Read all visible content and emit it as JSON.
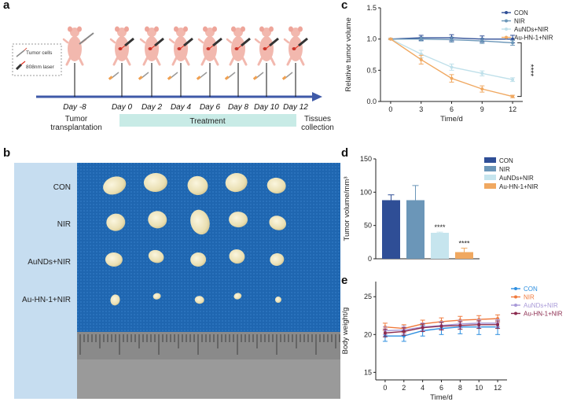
{
  "figure": {
    "panel_labels": [
      "a",
      "b",
      "c",
      "d",
      "e"
    ]
  },
  "panel_a": {
    "legend": {
      "cells": "Tumor cells",
      "laser": "808nm laser"
    },
    "days": [
      "Day -8",
      "Day 0",
      "Day 2",
      "Day 4",
      "Day 6",
      "Day 8",
      "Day 10",
      "Day 12"
    ],
    "events": {
      "transplant": "Tumor\ntransplantation",
      "treatment": "Treatment",
      "collection": "Tissues\ncollection"
    },
    "colors": {
      "axis": "#3f5aa8",
      "treatment_bar": "#c8ebe6",
      "mouse": "#f2b8ae"
    }
  },
  "panel_b": {
    "row_labels": [
      "CON",
      "NIR",
      "AuNDs+NIR",
      "Au-HN-1+NIR"
    ],
    "colors": {
      "label_bg": "#c6ddf0",
      "cloth": "#1f66b0",
      "ruler": "#7d7d7d"
    }
  },
  "chart_data": [
    {
      "id": "c",
      "type": "line",
      "ylabel": "Relative tumor volume",
      "xlabel": "Time/d",
      "x": [
        0,
        3,
        6,
        9,
        12
      ],
      "xlim": [
        -1,
        13
      ],
      "ylim": [
        0,
        1.5
      ],
      "yticks": [
        "0.0",
        "0.5",
        "1.0",
        "1.5"
      ],
      "xticks": [
        "0",
        "3",
        "6",
        "9",
        "12"
      ],
      "significance": "****",
      "series": [
        {
          "name": "CON",
          "color": "#2f4e96",
          "values": [
            1.0,
            1.02,
            1.02,
            1.0,
            1.0
          ],
          "err": [
            0.01,
            0.04,
            0.05,
            0.05,
            0.06
          ]
        },
        {
          "name": "NIR",
          "color": "#6b96b8",
          "values": [
            1.0,
            1.0,
            0.99,
            0.97,
            0.94
          ],
          "err": [
            0.01,
            0.03,
            0.04,
            0.04,
            0.04
          ]
        },
        {
          "name": "AuNDs+NIR",
          "color": "#bfe0ea",
          "values": [
            1.0,
            0.76,
            0.55,
            0.45,
            0.35
          ],
          "err": [
            0.01,
            0.06,
            0.05,
            0.04,
            0.03
          ]
        },
        {
          "name": "Au-HN-1+NIR",
          "color": "#f0a860",
          "values": [
            1.0,
            0.67,
            0.37,
            0.2,
            0.08
          ],
          "err": [
            0.01,
            0.07,
            0.06,
            0.05,
            0.02
          ]
        }
      ]
    },
    {
      "id": "d",
      "type": "bar",
      "ylabel": "Tumor volume/mm³",
      "ylim": [
        0,
        150
      ],
      "yticks": [
        "0",
        "50",
        "100",
        "150"
      ],
      "categories": [
        "CON",
        "NIR",
        "AuNDs+NIR",
        "Au-HN-1+NIR"
      ],
      "values": [
        88,
        88,
        39,
        10
      ],
      "err": [
        8,
        22,
        1,
        6
      ],
      "colors": [
        "#2f4e96",
        "#6b96b8",
        "#c6e5ee",
        "#f0a860"
      ],
      "annotations": [
        "",
        "",
        "****",
        "****"
      ]
    },
    {
      "id": "e",
      "type": "line",
      "ylabel": "Body weight/g",
      "xlabel": "Time/d",
      "x": [
        0,
        2,
        4,
        6,
        8,
        10,
        12
      ],
      "xlim": [
        -1,
        13
      ],
      "ylim": [
        14,
        27
      ],
      "yticks": [
        "15",
        "20",
        "25"
      ],
      "ytick_values": [
        15,
        20,
        25
      ],
      "xticks": [
        "0",
        "2",
        "4",
        "6",
        "8",
        "10",
        "12"
      ],
      "series": [
        {
          "name": "CON",
          "color": "#2e8fe0",
          "values": [
            19.8,
            19.8,
            20.5,
            20.8,
            21.0,
            21.0,
            21.0
          ],
          "err": [
            0.7,
            0.7,
            0.7,
            0.8,
            0.9,
            1.0,
            1.0
          ]
        },
        {
          "name": "NIR",
          "color": "#f07a3c",
          "values": [
            21.0,
            20.8,
            21.4,
            21.7,
            21.9,
            22.0,
            22.1
          ],
          "err": [
            0.5,
            0.5,
            0.5,
            0.5,
            0.5,
            0.5,
            0.5
          ]
        },
        {
          "name": "AuNDs+NIR",
          "color": "#a99ad8",
          "values": [
            20.5,
            20.6,
            21.0,
            21.2,
            21.4,
            21.5,
            21.5
          ],
          "err": [
            0.5,
            0.5,
            0.5,
            0.5,
            0.5,
            0.5,
            0.5
          ]
        },
        {
          "name": "Au-HN-1+NIR",
          "color": "#8b2a4e",
          "values": [
            20.2,
            20.4,
            20.9,
            21.1,
            21.2,
            21.3,
            21.3
          ],
          "err": [
            0.5,
            0.5,
            0.5,
            0.5,
            0.5,
            0.5,
            0.5
          ]
        }
      ]
    }
  ]
}
